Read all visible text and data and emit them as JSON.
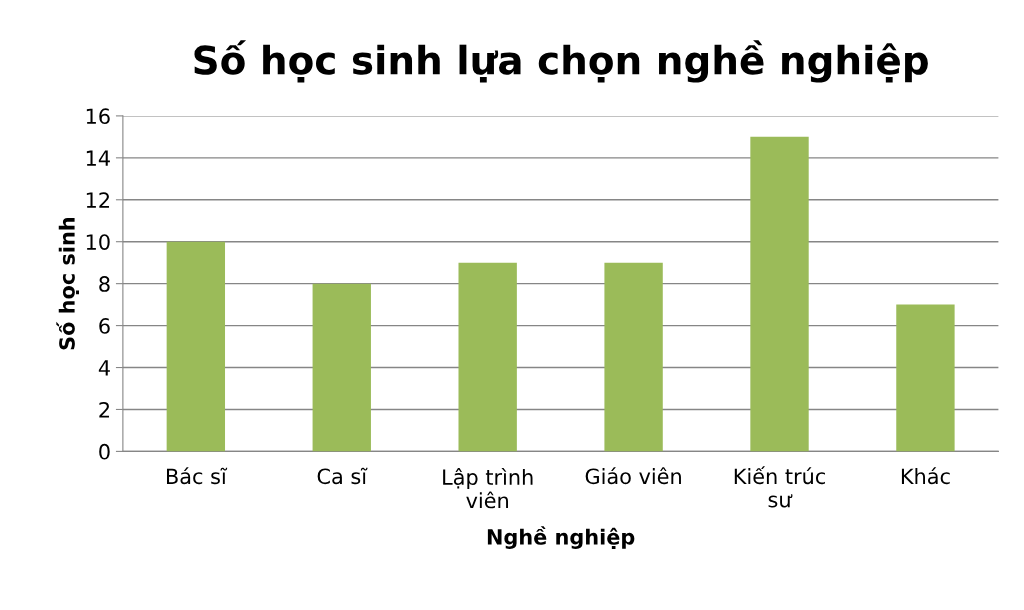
{
  "chart_data": {
    "type": "bar",
    "title": "Số học sinh lựa chọn nghề nghiệp",
    "xlabel": "Nghề nghiệp",
    "ylabel": "Số học sinh",
    "categories": [
      "Bác sĩ",
      "Ca sĩ",
      "Lập trình viên",
      "Giáo viên",
      "Kiến trúc sư",
      "Khác"
    ],
    "values": [
      10,
      8,
      9,
      9,
      15,
      7
    ],
    "color": "#9bbb59",
    "ylim": [
      0,
      16
    ],
    "yticks": [
      0,
      2,
      4,
      6,
      8,
      10,
      12,
      14,
      16
    ],
    "grid": "y",
    "legend": false
  }
}
